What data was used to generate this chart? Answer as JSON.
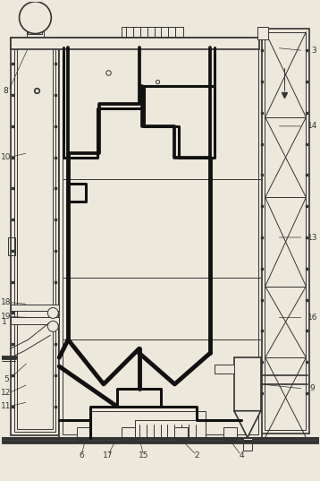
{
  "bg_color": "#ede8dc",
  "lc": "#333333",
  "tc": "#111111",
  "figsize": [
    3.58,
    5.37
  ],
  "dpi": 100
}
